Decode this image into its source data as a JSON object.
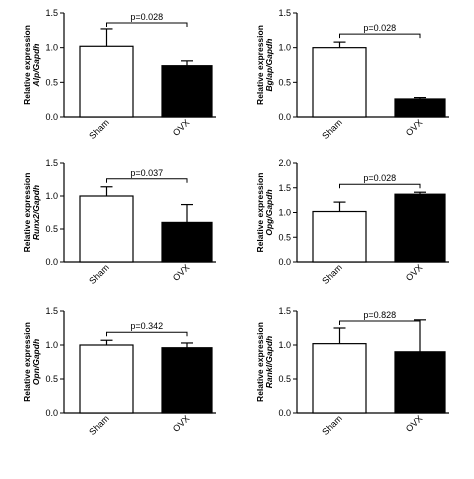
{
  "chart_data": [
    {
      "type": "bar",
      "ylabel": "Relative expression",
      "ylabel_gene": "Alp/Gapdh",
      "annotation": "p=0.028",
      "categories": [
        "Sham",
        "OVX"
      ],
      "values": [
        1.02,
        0.74
      ],
      "errors": [
        0.25,
        0.07
      ],
      "colors": [
        "#ffffff",
        "#000000"
      ],
      "ylim": [
        0,
        1.5
      ],
      "yticks": [
        {
          "value": 0,
          "label": "0.0"
        },
        {
          "value": 0.5,
          "label": "0.5"
        },
        {
          "value": 1,
          "label": "1.0"
        },
        {
          "value": 1.5,
          "label": "1.5"
        }
      ]
    },
    {
      "type": "bar",
      "ylabel": "Relative expression",
      "ylabel_gene": "Bglap/Gapdh",
      "annotation": "p=0.028",
      "categories": [
        "Sham",
        "OVX"
      ],
      "values": [
        1.0,
        0.26
      ],
      "errors": [
        0.08,
        0.02
      ],
      "colors": [
        "#ffffff",
        "#000000"
      ],
      "ylim": [
        0,
        1.5
      ],
      "yticks": [
        {
          "value": 0,
          "label": "0.0"
        },
        {
          "value": 0.5,
          "label": "0.5"
        },
        {
          "value": 1,
          "label": "1.0"
        },
        {
          "value": 1.5,
          "label": "1.5"
        }
      ]
    },
    {
      "type": "bar",
      "ylabel": "Relative expression",
      "ylabel_gene": "Runx2/Gapdh",
      "annotation": "p=0.037",
      "categories": [
        "Sham",
        "OVX"
      ],
      "values": [
        1.0,
        0.6
      ],
      "errors": [
        0.14,
        0.27
      ],
      "colors": [
        "#ffffff",
        "#000000"
      ],
      "ylim": [
        0,
        1.5
      ],
      "yticks": [
        {
          "value": 0,
          "label": "0.0"
        },
        {
          "value": 0.5,
          "label": "0.5"
        },
        {
          "value": 1,
          "label": "1.0"
        },
        {
          "value": 1.5,
          "label": "1.5"
        }
      ]
    },
    {
      "type": "bar",
      "ylabel": "Relative expression",
      "ylabel_gene": "Opg/Gapdh",
      "annotation": "p=0.028",
      "categories": [
        "Sham",
        "OVX"
      ],
      "values": [
        1.02,
        1.37
      ],
      "errors": [
        0.19,
        0.04
      ],
      "colors": [
        "#ffffff",
        "#000000"
      ],
      "ylim": [
        0,
        2
      ],
      "yticks": [
        {
          "value": 0,
          "label": "0.0"
        },
        {
          "value": 0.5,
          "label": "0.5"
        },
        {
          "value": 1,
          "label": "1.0"
        },
        {
          "value": 1.5,
          "label": "1.5"
        },
        {
          "value": 2,
          "label": "2.0"
        }
      ]
    },
    {
      "type": "bar",
      "ylabel": "Relative expression",
      "ylabel_gene": "Opn/Gapdh",
      "annotation": "p=0.342",
      "categories": [
        "Sham",
        "OVX"
      ],
      "values": [
        1.0,
        0.96
      ],
      "errors": [
        0.07,
        0.07
      ],
      "colors": [
        "#ffffff",
        "#000000"
      ],
      "ylim": [
        0,
        1.5
      ],
      "yticks": [
        {
          "value": 0,
          "label": "0.0"
        },
        {
          "value": 0.5,
          "label": "0.5"
        },
        {
          "value": 1,
          "label": "1.0"
        },
        {
          "value": 1.5,
          "label": "1.5"
        }
      ]
    },
    {
      "type": "bar",
      "ylabel": "Relative expression",
      "ylabel_gene": "Rankl/Gapdh",
      "annotation": "p=0.828",
      "categories": [
        "Sham",
        "OVX"
      ],
      "values": [
        1.02,
        0.9
      ],
      "errors": [
        0.23,
        0.47
      ],
      "colors": [
        "#ffffff",
        "#000000"
      ],
      "ylim": [
        0,
        1.5
      ],
      "yticks": [
        {
          "value": 0,
          "label": "0.0"
        },
        {
          "value": 0.5,
          "label": "0.5"
        },
        {
          "value": 1,
          "label": "1.0"
        },
        {
          "value": 1.5,
          "label": "1.5"
        }
      ]
    }
  ]
}
